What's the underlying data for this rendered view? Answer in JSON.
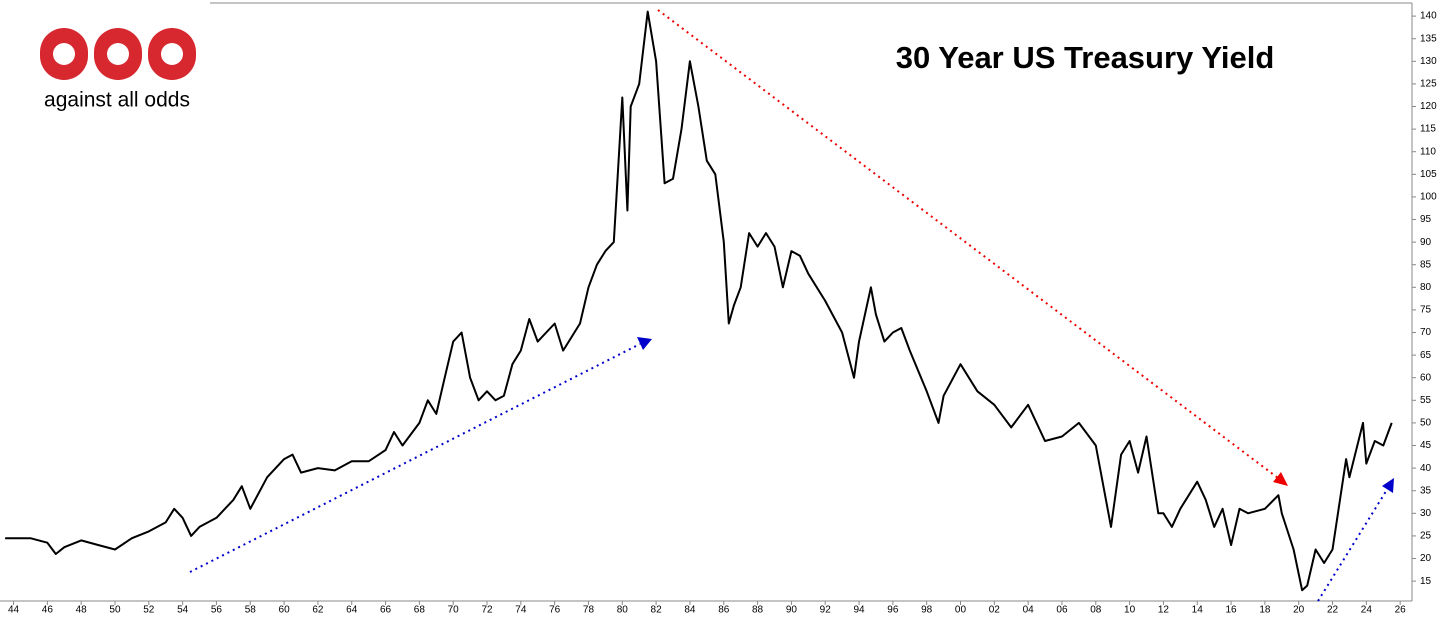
{
  "chart_data": {
    "type": "line",
    "title": "30 Year US Treasury Yield",
    "brand": "against all odds",
    "color": "#000000",
    "xlim": [
      1943.2,
      2026.7
    ],
    "ylim": [
      10.6,
      142.9
    ],
    "yticks": [
      15,
      20,
      25,
      30,
      35,
      40,
      45,
      50,
      55,
      60,
      65,
      70,
      75,
      80,
      85,
      90,
      95,
      100,
      105,
      110,
      115,
      120,
      125,
      130,
      135,
      140
    ],
    "xticks": [
      {
        "value": 1944,
        "label": "44"
      },
      {
        "value": 1946,
        "label": "46"
      },
      {
        "value": 1948,
        "label": "48"
      },
      {
        "value": 1950,
        "label": "50"
      },
      {
        "value": 1952,
        "label": "52"
      },
      {
        "value": 1954,
        "label": "54"
      },
      {
        "value": 1956,
        "label": "56"
      },
      {
        "value": 1958,
        "label": "58"
      },
      {
        "value": 1960,
        "label": "60"
      },
      {
        "value": 1962,
        "label": "62"
      },
      {
        "value": 1964,
        "label": "64"
      },
      {
        "value": 1966,
        "label": "66"
      },
      {
        "value": 1968,
        "label": "68"
      },
      {
        "value": 1970,
        "label": "70"
      },
      {
        "value": 1972,
        "label": "72"
      },
      {
        "value": 1974,
        "label": "74"
      },
      {
        "value": 1976,
        "label": "76"
      },
      {
        "value": 1978,
        "label": "78"
      },
      {
        "value": 1980,
        "label": "80"
      },
      {
        "value": 1982,
        "label": "82"
      },
      {
        "value": 1984,
        "label": "84"
      },
      {
        "value": 1986,
        "label": "86"
      },
      {
        "value": 1988,
        "label": "88"
      },
      {
        "value": 1990,
        "label": "90"
      },
      {
        "value": 1992,
        "label": "92"
      },
      {
        "value": 1994,
        "label": "94"
      },
      {
        "value": 1996,
        "label": "96"
      },
      {
        "value": 1998,
        "label": "98"
      },
      {
        "value": 2000,
        "label": "00"
      },
      {
        "value": 2002,
        "label": "02"
      },
      {
        "value": 2004,
        "label": "04"
      },
      {
        "value": 2006,
        "label": "06"
      },
      {
        "value": 2008,
        "label": "08"
      },
      {
        "value": 2010,
        "label": "10"
      },
      {
        "value": 2012,
        "label": "12"
      },
      {
        "value": 2014,
        "label": "14"
      },
      {
        "value": 2016,
        "label": "16"
      },
      {
        "value": 2018,
        "label": "18"
      },
      {
        "value": 2020,
        "label": "20"
      },
      {
        "value": 2022,
        "label": "22"
      },
      {
        "value": 2024,
        "label": "24"
      },
      {
        "value": 2026,
        "label": "26"
      }
    ],
    "x": [
      1943.5,
      1945,
      1946,
      1946.5,
      1947,
      1948,
      1949,
      1950,
      1951,
      1952,
      1953,
      1953.5,
      1954,
      1954.5,
      1955,
      1956,
      1957,
      1957.5,
      1958,
      1959,
      1960,
      1960.5,
      1961,
      1962,
      1963,
      1964,
      1965,
      1966,
      1966.5,
      1967,
      1968,
      1968.5,
      1969,
      1969.5,
      1970,
      1970.5,
      1971,
      1971.5,
      1972,
      1972.5,
      1973,
      1973.5,
      1974,
      1974.5,
      1975,
      1976,
      1976.5,
      1977,
      1977.5,
      1978,
      1978.5,
      1979,
      1979.5,
      1980,
      1980.3,
      1980.5,
      1981,
      1981.5,
      1982,
      1982.5,
      1983,
      1983.5,
      1984,
      1984.5,
      1985,
      1985.5,
      1986,
      1986.3,
      1986.6,
      1987,
      1987.5,
      1988,
      1988.5,
      1989,
      1989.5,
      1990,
      1990.5,
      1991,
      1992,
      1993,
      1993.7,
      1994,
      1994.7,
      1995,
      1995.5,
      1996,
      1996.5,
      1997,
      1998,
      1998.7,
      1999,
      2000,
      2001,
      2002,
      2003,
      2004,
      2005,
      2006,
      2007,
      2008,
      2008.9,
      2009.5,
      2010,
      2010.5,
      2011,
      2011.7,
      2012,
      2012.5,
      2013,
      2014,
      2014.5,
      2015,
      2015.5,
      2016,
      2016.5,
      2017,
      2018,
      2018.8,
      2019,
      2019.7,
      2020.2,
      2020.5,
      2021,
      2021.5,
      2022,
      2022.8,
      2023,
      2023.8,
      2024,
      2024.5,
      2025,
      2025.5
    ],
    "values": [
      24.5,
      24.5,
      23.5,
      21,
      22.5,
      24,
      23,
      22,
      24.5,
      26,
      28,
      31,
      29,
      25,
      27,
      29,
      33,
      36,
      31,
      38,
      42,
      43,
      39,
      40,
      39.5,
      41.5,
      41.5,
      44,
      48,
      45,
      50,
      55,
      52,
      60,
      68,
      70,
      60,
      55,
      57,
      55,
      56,
      63,
      66,
      73,
      68,
      72,
      66,
      69,
      72,
      80,
      85,
      88,
      90,
      122,
      97,
      120,
      125,
      141,
      130,
      103,
      104,
      115,
      130,
      120,
      108,
      105,
      90,
      72,
      76,
      80,
      92,
      89,
      92,
      89,
      80,
      88,
      87,
      83,
      77,
      70,
      60,
      68,
      80,
      74,
      68,
      70,
      71,
      66,
      57,
      50,
      56,
      63,
      57,
      54,
      49,
      54,
      46,
      47,
      50,
      45,
      27,
      43,
      46,
      39,
      47,
      30,
      30,
      27,
      31,
      37,
      33,
      27,
      31,
      23,
      31,
      30,
      31,
      34,
      30,
      22,
      13,
      14,
      22,
      19,
      22,
      42,
      38,
      50,
      41,
      46,
      45,
      50
    ]
  }
}
